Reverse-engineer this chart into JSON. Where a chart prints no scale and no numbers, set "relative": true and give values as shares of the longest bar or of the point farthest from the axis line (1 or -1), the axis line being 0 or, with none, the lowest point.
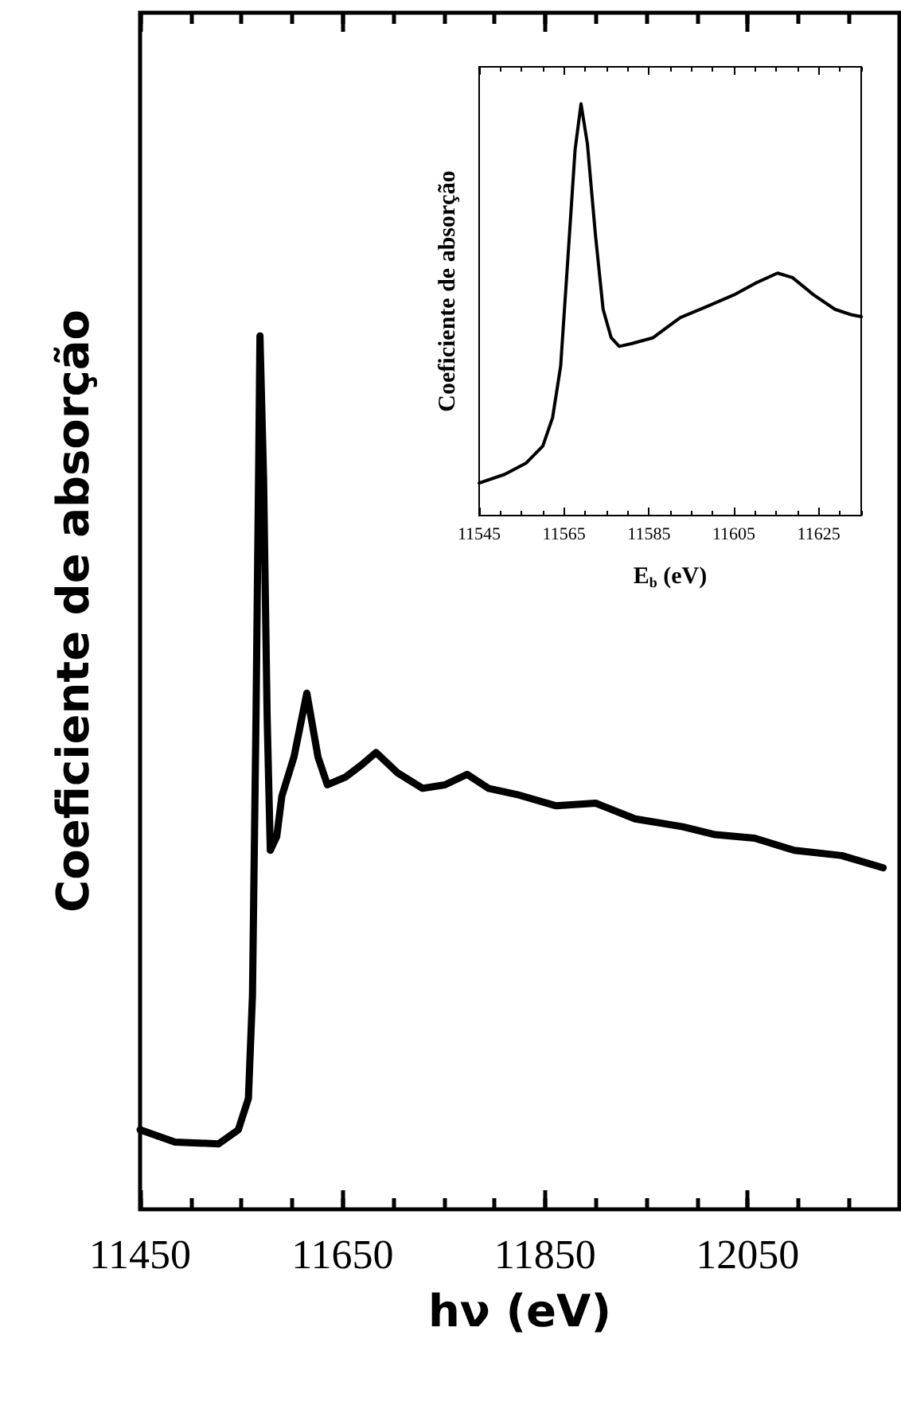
{
  "chart_data": [
    {
      "type": "line",
      "xlabel": "hν (eV)",
      "ylabel": "Coeficiente de absorção",
      "relative": true,
      "xlim": [
        11450,
        12200
      ],
      "xticks": [
        11450,
        11650,
        11850,
        12050
      ],
      "tick_labels": "x",
      "marker": "none",
      "line_style": "solid",
      "series": [
        {
          "color": "#000000",
          "x": [
            11450,
            11484.5,
            11527.6,
            11547,
            11557,
            11561,
            11564.5,
            11567,
            11568.4,
            11572,
            11575.5,
            11578.6,
            11585,
            11590,
            11602,
            11614.7,
            11625.7,
            11635,
            11653,
            11669,
            11683,
            11704,
            11729,
            11751,
            11773,
            11794,
            11822,
            11861,
            11900,
            11939,
            11986,
            12018,
            12057,
            12096,
            12143,
            12184
          ],
          "values": [
            0.091,
            0.077,
            0.075,
            0.091,
            0.127,
            0.245,
            0.564,
            0.836,
            1.0,
            0.836,
            0.564,
            0.411,
            0.427,
            0.473,
            0.518,
            0.591,
            0.518,
            0.486,
            0.495,
            0.509,
            0.523,
            0.5,
            0.482,
            0.486,
            0.498,
            0.482,
            0.475,
            0.462,
            0.465,
            0.447,
            0.438,
            0.429,
            0.425,
            0.411,
            0.405,
            0.391
          ]
        }
      ]
    },
    {
      "type": "line",
      "xlabel": "E$_{b}$ (eV)",
      "ylabel": "Coeficiente de absorção",
      "relative": true,
      "xlim": [
        11545,
        11635
      ],
      "xticks": [
        11545,
        11565,
        11585,
        11605,
        11625
      ],
      "tick_labels": "x",
      "marker": "none",
      "line_style": "solid",
      "series": [
        {
          "color": "#000000",
          "x": [
            11545,
            11551,
            11556,
            11560,
            11562.3,
            11564.2,
            11566,
            11567.6,
            11569,
            11570.5,
            11572.4,
            11574.2,
            11576.1,
            11578,
            11581,
            11586,
            11588.7,
            11592.4,
            11598.7,
            11605,
            11610,
            11615.3,
            11618.8,
            11623.8,
            11628.8,
            11632.6,
            11635
          ],
          "values": [
            0.079,
            0.1,
            0.127,
            0.169,
            0.238,
            0.363,
            0.64,
            0.889,
            1.0,
            0.903,
            0.681,
            0.501,
            0.432,
            0.411,
            0.418,
            0.432,
            0.453,
            0.481,
            0.508,
            0.536,
            0.564,
            0.589,
            0.578,
            0.536,
            0.501,
            0.488,
            0.483
          ]
        }
      ]
    }
  ]
}
